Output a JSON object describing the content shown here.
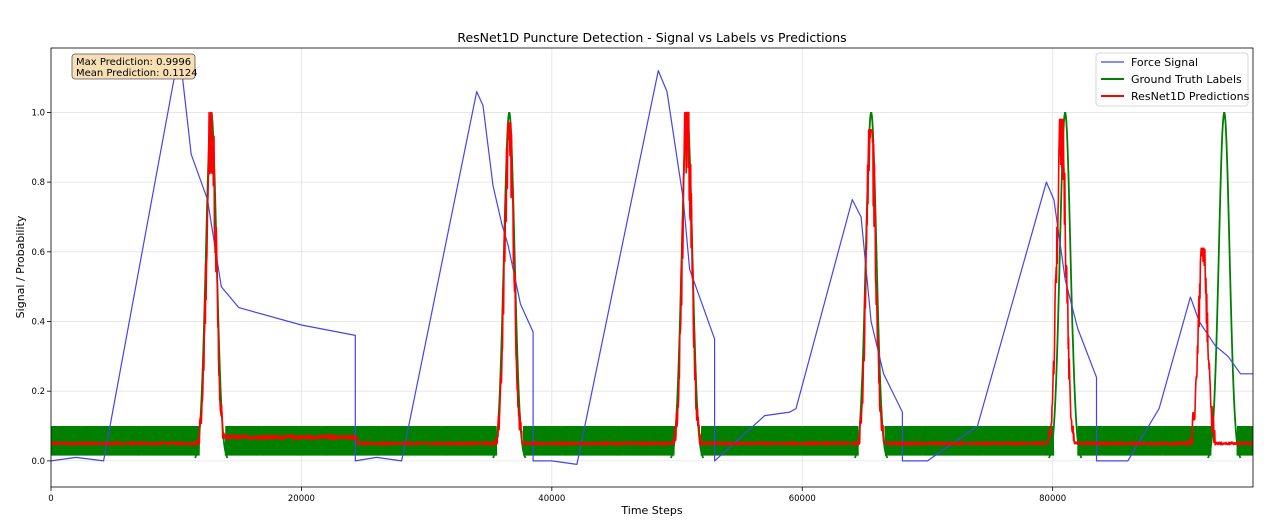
{
  "chart_data": {
    "type": "line",
    "title": "ResNet1D Puncture Detection - Signal vs Labels vs Predictions",
    "xlabel": "Time Steps",
    "ylabel": "Signal / Probability",
    "xlim": [
      0,
      96000
    ],
    "ylim": [
      -0.075,
      1.185
    ],
    "xticks": [
      0,
      20000,
      40000,
      60000,
      80000
    ],
    "yticks": [
      0.0,
      0.2,
      0.4,
      0.6,
      0.8,
      1.0
    ],
    "xtick_labels": [
      "0",
      "20000",
      "40000",
      "60000",
      "80000"
    ],
    "ytick_labels": [
      "0.0",
      "0.2",
      "0.4",
      "0.6",
      "0.8",
      "1.0"
    ],
    "grid": true,
    "legend_position": "top-right",
    "colors": {
      "signal": "#4444ee",
      "labels": "#008000",
      "predictions": "#ff0000"
    },
    "info_box": {
      "line1": "Max Prediction: 0.9996",
      "line2": "Mean Prediction: 0.1124"
    },
    "series": [
      {
        "name": "Force Signal",
        "x": [
          0,
          2000,
          4200,
          10000,
          10500,
          11200,
          12500,
          13600,
          15000,
          20000,
          24300,
          24300,
          26000,
          28000,
          34000,
          34500,
          35300,
          36000,
          36500,
          37500,
          38500,
          38500,
          40000,
          42000,
          48500,
          49200,
          50500,
          51000,
          53000,
          53000,
          57000,
          59000,
          59500,
          64000,
          64700,
          65500,
          66500,
          68000,
          68000,
          70000,
          74000,
          79500,
          80100,
          81000,
          82000,
          83500,
          83500,
          86000,
          88500,
          91000,
          91700,
          93000,
          94000,
          95000,
          96000
        ],
        "y": [
          0.0,
          0.01,
          0.0,
          1.13,
          1.1,
          0.88,
          0.75,
          0.5,
          0.44,
          0.39,
          0.36,
          0.0,
          0.01,
          0.0,
          1.06,
          1.02,
          0.79,
          0.68,
          0.62,
          0.45,
          0.37,
          0.0,
          0.0,
          -0.01,
          1.12,
          1.06,
          0.75,
          0.55,
          0.35,
          0.0,
          0.13,
          0.14,
          0.15,
          0.75,
          0.7,
          0.4,
          0.25,
          0.14,
          0.0,
          0.0,
          0.1,
          0.8,
          0.75,
          0.52,
          0.38,
          0.24,
          0.0,
          0.0,
          0.15,
          0.47,
          0.4,
          0.33,
          0.3,
          0.25,
          0.25
        ]
      },
      {
        "name": "Ground Truth Labels",
        "peaks": [
          12800,
          36600,
          50800,
          65500,
          81000,
          93700
        ],
        "peak_value": 1.0,
        "noise_band": [
          0.015,
          0.1
        ],
        "band_gaps": [
          [
            11900,
            13900
          ],
          [
            35600,
            37700
          ],
          [
            49800,
            51900
          ],
          [
            64500,
            66600
          ],
          [
            80100,
            82000
          ],
          [
            92700,
            94700
          ]
        ]
      },
      {
        "name": "ResNet1D Predictions",
        "baseline": 0.05,
        "peaks": [
          {
            "x": 12800,
            "y": 1.0
          },
          {
            "x": 36600,
            "y": 0.97
          },
          {
            "x": 50800,
            "y": 1.0
          },
          {
            "x": 65500,
            "y": 0.95
          },
          {
            "x": 80700,
            "y": 0.98
          },
          {
            "x": 92000,
            "y": 0.61
          }
        ]
      }
    ]
  }
}
